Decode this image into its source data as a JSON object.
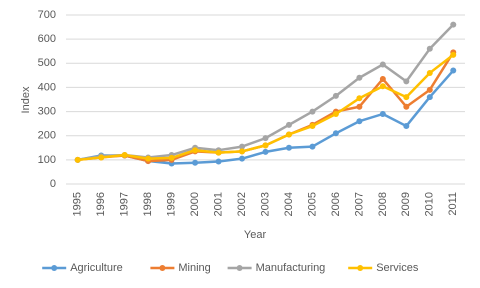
{
  "chart_data": {
    "type": "line",
    "x_label": "Year",
    "y_label": "Index",
    "categories": [
      "1995",
      "1996",
      "1997",
      "1998",
      "1999",
      "2000",
      "2001",
      "2002",
      "2003",
      "2004",
      "2005",
      "2006",
      "2007",
      "2008",
      "2009",
      "2010",
      "2011"
    ],
    "series": [
      {
        "name": "Agriculture",
        "color": "#5b9bd5",
        "values": [
          100,
          118,
          118,
          95,
          85,
          88,
          93,
          105,
          133,
          150,
          155,
          210,
          260,
          290,
          240,
          360,
          470
        ]
      },
      {
        "name": "Mining",
        "color": "#ed7d31",
        "values": [
          100,
          110,
          118,
          95,
          100,
          135,
          130,
          135,
          160,
          205,
          245,
          300,
          320,
          435,
          320,
          390,
          545
        ]
      },
      {
        "name": "Manufacturing",
        "color": "#a5a5a5",
        "values": [
          100,
          115,
          120,
          110,
          120,
          150,
          140,
          155,
          190,
          245,
          300,
          365,
          440,
          495,
          425,
          560,
          660
        ]
      },
      {
        "name": "Services",
        "color": "#ffc000",
        "values": [
          100,
          110,
          120,
          105,
          108,
          140,
          130,
          135,
          160,
          205,
          240,
          290,
          355,
          405,
          360,
          460,
          535
        ]
      }
    ],
    "ylim": [
      0,
      700
    ],
    "yticks": [
      0,
      100,
      200,
      300,
      400,
      500,
      600,
      700
    ],
    "grid": true,
    "legend": "bottom"
  }
}
